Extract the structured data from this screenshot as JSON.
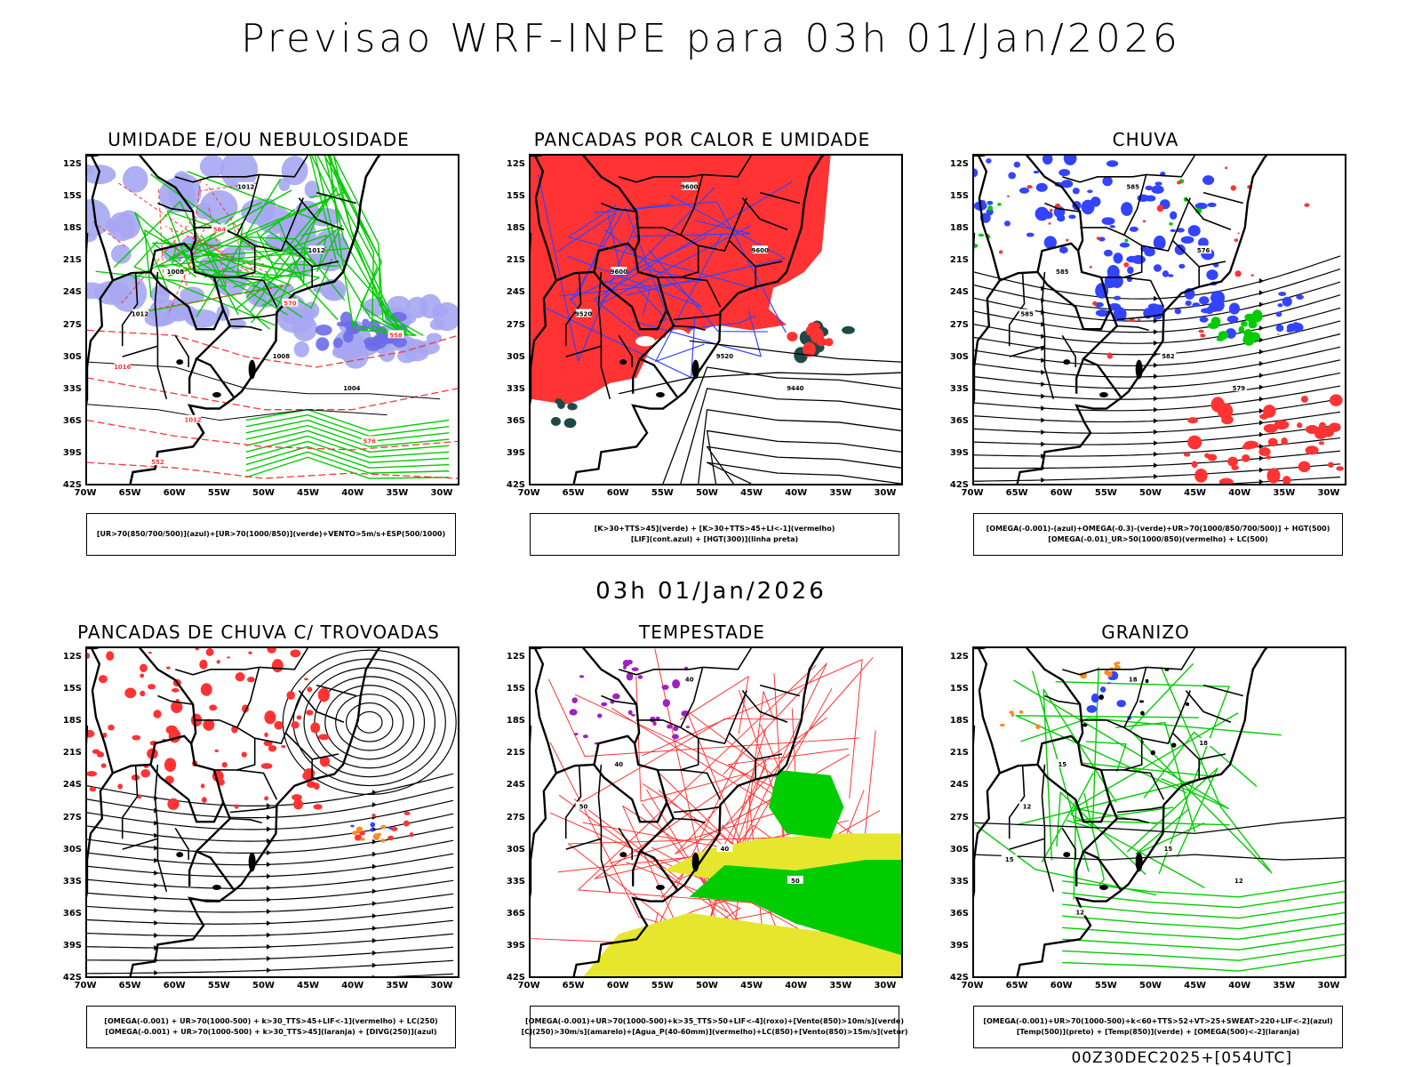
{
  "title": "Previsao WRF-INPE  para 03h 01/Jan/2026",
  "mid_title": "03h 01/Jan/2026",
  "footer": "00Z30DEC2025+[054UTC]",
  "lat_labels": [
    "12S",
    "15S",
    "18S",
    "21S",
    "24S",
    "27S",
    "30S",
    "33S",
    "36S",
    "39S",
    "42S"
  ],
  "lon_labels": [
    "70W",
    "65W",
    "60W",
    "55W",
    "50W",
    "45W",
    "40W",
    "35W",
    "30W"
  ],
  "colors": {
    "humidity_blue": "#a6a6f2",
    "humidity_dark_blue": "#6b6be8",
    "green": "#00cc00",
    "red": "#ff3333",
    "dark_teal": "#1e4a46",
    "blue_line": "#3344ff",
    "orange": "#ff8c1a",
    "purple": "#a020c0",
    "yellow": "#e6e62e"
  },
  "panels": [
    {
      "id": "umidade",
      "title": "UMIDADE E/OU NEBULOSIDADE",
      "legend": [
        "[UR>70(850/700/500)](azul)+[UR>70(1000/850)](verde)+VENTO>5m/s+ESP(500/1000)"
      ],
      "contour_labels": [
        "1012",
        "1008",
        "1012",
        "1008",
        "1004",
        "1012",
        "1016",
        "1012",
        "576",
        "570",
        "564",
        "558",
        "552"
      ]
    },
    {
      "id": "pancadas-calor",
      "title": "PANCADAS POR CALOR E UMIDADE",
      "legend": [
        "[K>30+TTS>45](verde) + [K>30+TTS>45+LI<-1](vermelho)",
        "[LIF](cont.azul) + [HGT(300)](linha preta)"
      ],
      "contour_labels": [
        "9600",
        "9600",
        "9520",
        "9520",
        "9440",
        "9600"
      ]
    },
    {
      "id": "chuva",
      "title": "CHUVA",
      "legend": [
        "[OMEGA(-0.001)-(azul)+OMEGA(-0.3)-(verde)+UR>70(1000/850/700/500)] + HGT(500)",
        "[OMEGA(-0.01)_UR>50(1000/850)(vermelho) + LC(500)"
      ],
      "contour_labels": [
        "585",
        "585",
        "585",
        "582",
        "579",
        "576"
      ]
    },
    {
      "id": "trovoadas",
      "title": "PANCADAS DE CHUVA C/ TROVOADAS",
      "legend": [
        "[OMEGA(-0.001) + UR>70(1000-500) + k>30_TTS>45+LIF<-1](vermelho) + LC(250)",
        "[OMEGA(-0.001) + UR>70(1000-500) + k>30_TTS>45](laranja) + [DIVG(250)](azul)"
      ],
      "contour_labels": []
    },
    {
      "id": "tempestade",
      "title": "TEMPESTADE",
      "legend": [
        "[OMEGA(-0.001)+UR>70(1000-500)+k>35_TTS>50+LIF<-4](roxo)+[Vento(850)>10m/s](verde)",
        "[CJ(250)>30m/s](amarelo)+[Agua_P(40-60mm)](vermelho)+LC(850)+[Vento(850)>15m/s](vetor)"
      ],
      "contour_labels": [
        "40",
        "40",
        "50",
        "40",
        "50"
      ]
    },
    {
      "id": "granizo",
      "title": "GRANIZO",
      "legend": [
        "[OMEGA(-0.001)+UR>70(1000-500)+k<60+TTS>52+VT>25+SWEAT>220+LIF<-2](azul)",
        "[Temp(500)](preto) + [Temp(850)](verde) + [OMEGA(500)<-2](laranja)"
      ],
      "contour_labels": [
        "18",
        "15",
        "12",
        "15",
        "12",
        "18",
        "15",
        "12"
      ]
    }
  ]
}
